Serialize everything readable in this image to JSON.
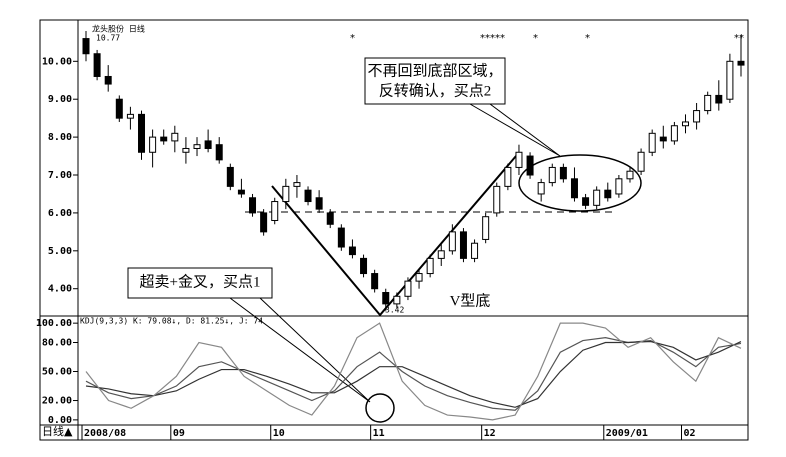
{
  "chart_data": [
    {
      "type": "candlestick",
      "title": "龙头股份 日线",
      "period_label": "日线▲",
      "categories": [
        "2008/08",
        null,
        null,
        null,
        null,
        null,
        null,
        null,
        "09",
        null,
        null,
        null,
        null,
        null,
        null,
        null,
        null,
        "10",
        null,
        null,
        null,
        null,
        null,
        null,
        null,
        null,
        "11",
        null,
        null,
        null,
        null,
        null,
        null,
        null,
        null,
        null,
        "12",
        null,
        null,
        null,
        null,
        null,
        null,
        null,
        null,
        null,
        null,
        "2009/01",
        null,
        null,
        null,
        null,
        null,
        null,
        "02",
        null,
        null,
        null,
        null,
        null
      ],
      "open": [
        10.6,
        10.2,
        9.6,
        9.0,
        8.5,
        8.6,
        7.6,
        8.0,
        7.9,
        7.6,
        7.7,
        7.9,
        7.8,
        7.2,
        6.6,
        6.4,
        6.0,
        5.8,
        6.3,
        6.7,
        6.6,
        6.4,
        6.0,
        5.6,
        5.1,
        4.8,
        4.4,
        3.9,
        3.6,
        3.8,
        4.2,
        4.4,
        4.8,
        5.0,
        5.5,
        4.8,
        5.3,
        6.0,
        6.7,
        7.2,
        7.5,
        6.5,
        6.8,
        7.2,
        6.9,
        6.4,
        6.2,
        6.6,
        6.5,
        6.9,
        7.1,
        7.6,
        8.0,
        7.9,
        8.3,
        8.4,
        8.7,
        9.1,
        9.0,
        10.0
      ],
      "high": [
        10.8,
        10.3,
        9.9,
        9.1,
        8.8,
        8.7,
        8.2,
        8.2,
        8.3,
        8.0,
        8.0,
        8.2,
        8.0,
        7.3,
        6.9,
        6.5,
        6.1,
        6.4,
        6.9,
        7.0,
        6.7,
        6.6,
        6.1,
        5.7,
        5.3,
        4.9,
        4.5,
        4.0,
        3.9,
        4.3,
        4.5,
        4.9,
        5.2,
        5.7,
        5.6,
        5.3,
        6.0,
        6.8,
        7.3,
        7.8,
        7.6,
        6.9,
        7.3,
        7.3,
        7.2,
        6.5,
        6.7,
        6.8,
        7.0,
        7.2,
        7.7,
        8.2,
        8.3,
        8.4,
        8.6,
        8.9,
        9.2,
        9.5,
        10.2,
        10.7
      ],
      "low": [
        10.0,
        9.5,
        9.2,
        8.4,
        8.2,
        7.4,
        7.2,
        7.8,
        7.6,
        7.3,
        7.5,
        7.6,
        7.3,
        6.6,
        6.4,
        5.9,
        5.4,
        5.7,
        6.1,
        6.4,
        6.2,
        6.0,
        5.6,
        5.0,
        4.8,
        4.3,
        3.9,
        3.42,
        3.5,
        3.7,
        4.0,
        4.3,
        4.6,
        4.9,
        4.7,
        4.7,
        5.2,
        5.9,
        6.6,
        7.0,
        6.9,
        6.3,
        6.7,
        6.8,
        6.3,
        6.1,
        6.1,
        6.3,
        6.4,
        6.8,
        7.0,
        7.5,
        7.7,
        7.8,
        8.1,
        8.2,
        8.6,
        8.7,
        8.9,
        9.6
      ],
      "close": [
        10.2,
        9.6,
        9.4,
        8.5,
        8.6,
        7.6,
        8.0,
        7.9,
        8.1,
        7.7,
        7.8,
        7.7,
        7.4,
        6.7,
        6.5,
        6.0,
        5.5,
        6.3,
        6.7,
        6.8,
        6.3,
        6.1,
        5.7,
        5.1,
        4.9,
        4.4,
        4.0,
        3.6,
        3.8,
        4.2,
        4.4,
        4.8,
        5.0,
        5.5,
        4.8,
        5.2,
        5.9,
        6.7,
        7.2,
        7.6,
        7.0,
        6.8,
        7.2,
        6.9,
        6.4,
        6.2,
        6.6,
        6.4,
        6.9,
        7.1,
        7.6,
        8.1,
        7.9,
        8.3,
        8.4,
        8.7,
        9.1,
        8.9,
        10.0,
        9.9
      ],
      "ylim": [
        3.28,
        11.09
      ],
      "yticks": [
        {
          "value": 4,
          "label": "4.00"
        },
        {
          "value": 5,
          "label": "5.00"
        },
        {
          "value": 6,
          "label": "6.00"
        },
        {
          "value": 7,
          "label": "7.00"
        },
        {
          "value": 8,
          "label": "8.00"
        },
        {
          "value": 9,
          "label": "9.00"
        },
        {
          "value": 10,
          "label": "10.00"
        }
      ],
      "annotations": [
        "10.77",
        "3.42",
        "不再回到底部区域，",
        "反转确认，买点2",
        "超卖+金叉，买点1",
        "V型底"
      ]
    },
    {
      "type": "line",
      "title": "KDJ(9,3,3) K: 79.08↓, D: 81.25↓, J: 74",
      "series": [
        {
          "color": "#555555",
          "values": [
            40,
            28,
            22,
            25,
            35,
            55,
            60,
            50,
            40,
            30,
            20,
            30,
            55,
            70,
            50,
            35,
            25,
            18,
            12,
            10,
            30,
            70,
            82,
            85,
            80,
            82,
            70,
            55,
            75,
            79
          ]
        },
        {
          "color": "#333333",
          "values": [
            35,
            32,
            27,
            25,
            30,
            42,
            52,
            52,
            45,
            37,
            28,
            28,
            40,
            55,
            55,
            45,
            35,
            25,
            18,
            13,
            22,
            50,
            72,
            80,
            80,
            81,
            75,
            62,
            70,
            81
          ]
        },
        {
          "color": "#888888",
          "values": [
            50,
            20,
            12,
            25,
            45,
            80,
            75,
            45,
            30,
            15,
            5,
            35,
            85,
            100,
            40,
            15,
            5,
            3,
            0,
            5,
            45,
            100,
            100,
            95,
            75,
            85,
            60,
            40,
            85,
            74
          ]
        }
      ],
      "ylim": [
        -5.3,
        107.4
      ],
      "yticks": [
        {
          "value": 0,
          "label": "0.00"
        },
        {
          "value": 20,
          "label": "20.00"
        },
        {
          "value": 50,
          "label": "50.00"
        },
        {
          "value": 80,
          "label": "80.00"
        },
        {
          "value": 100,
          "label": "100.00"
        }
      ]
    }
  ]
}
